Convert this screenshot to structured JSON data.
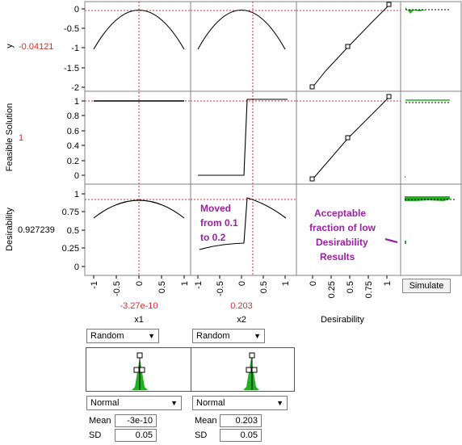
{
  "rows": [
    {
      "label": "y",
      "value": "-0.04121",
      "ticks": [
        "0",
        "-0.5",
        "-1",
        "-1.5",
        "-2"
      ]
    },
    {
      "label": "Feasible Solution",
      "value": "1",
      "ticks": [
        "1",
        "0.8",
        "0.6",
        "0.4",
        "0.2",
        "0"
      ]
    },
    {
      "label": "Desirability",
      "value": "0.927239",
      "ticks": [
        "1",
        "0.75",
        "0.5",
        "0.25",
        "0"
      ]
    }
  ],
  "columns": [
    {
      "label": "x1",
      "value": "-3.27e-10",
      "ticks": [
        "-1",
        "-0.5",
        "0",
        "0.5",
        "1"
      ]
    },
    {
      "label": "x2",
      "value": "0.203",
      "ticks": [
        "-1",
        "-0.5",
        "0",
        "0.5",
        "1"
      ]
    },
    {
      "label": "Desirability",
      "ticks": [
        "0",
        "0.25",
        "0.5",
        "0.75",
        "1"
      ]
    }
  ],
  "annotations": {
    "moved": [
      "Moved",
      "from 0.1",
      "to 0.2"
    ],
    "acceptable": [
      "Acceptable",
      "fraction of low",
      "Desirability",
      "Results"
    ]
  },
  "simulate_label": "Simulate",
  "factors": [
    {
      "mode": "Random",
      "distribution": "Normal",
      "mean_label": "Mean",
      "mean": "-3e-10",
      "sd_label": "SD",
      "sd": "0.05"
    },
    {
      "mode": "Random",
      "distribution": "Normal",
      "mean_label": "Mean",
      "mean": "0.203",
      "sd_label": "SD",
      "sd": "0.05"
    }
  ],
  "colors": {
    "current_value": "#d03030",
    "annotation": "#9b1fa3",
    "histogram": "#22b022"
  }
}
